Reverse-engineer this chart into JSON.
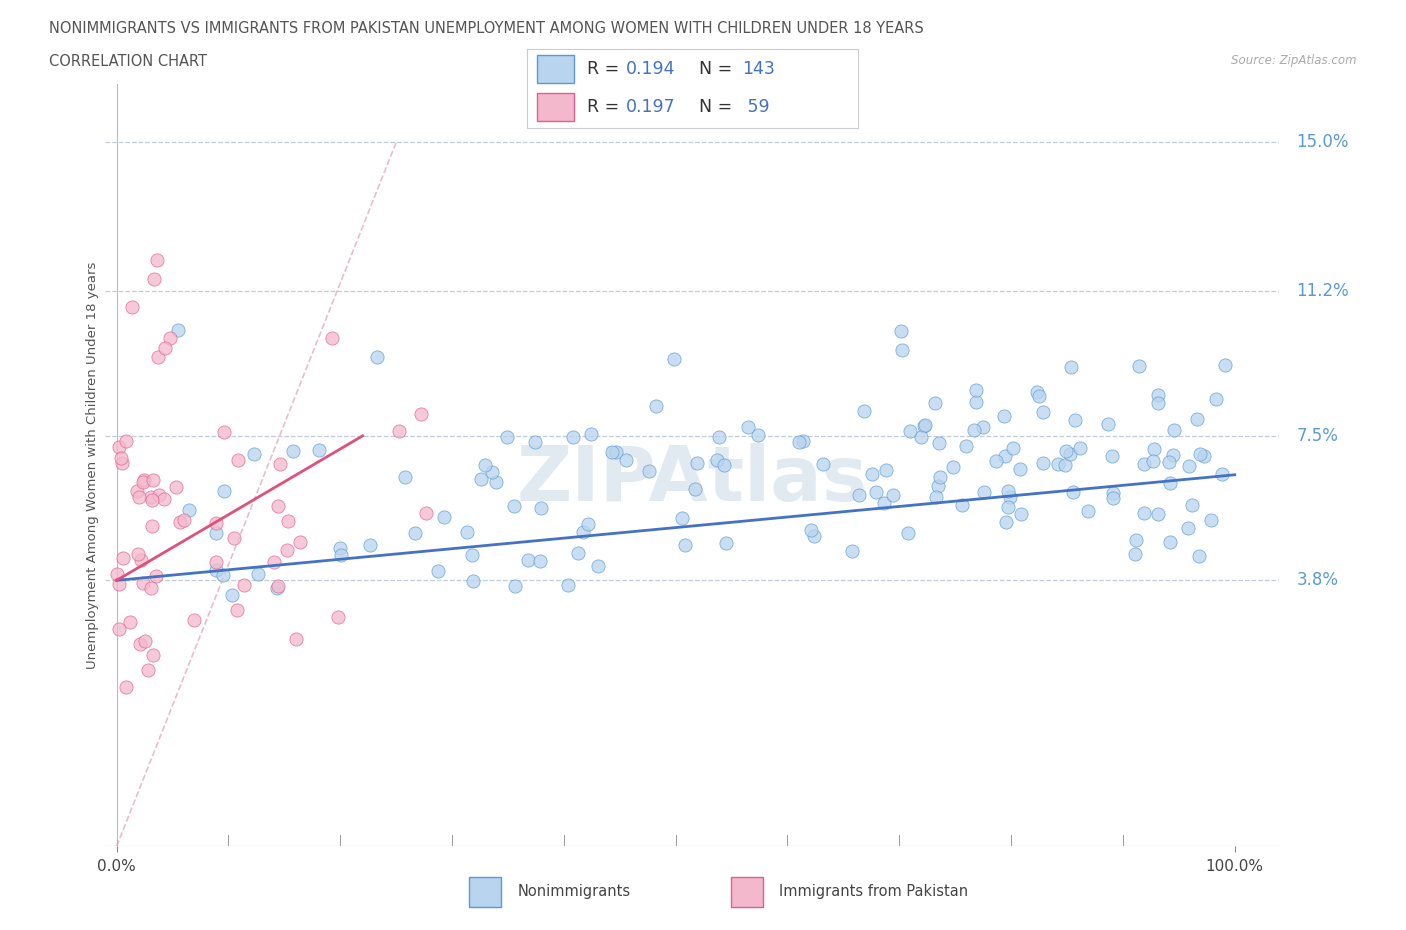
{
  "title_line1": "NONIMMIGRANTS VS IMMIGRANTS FROM PAKISTAN UNEMPLOYMENT AMONG WOMEN WITH CHILDREN UNDER 18 YEARS",
  "title_line2": "CORRELATION CHART",
  "source": "Source: ZipAtlas.com",
  "ylabel": "Unemployment Among Women with Children Under 18 years",
  "ytick_vals": [
    3.8,
    7.5,
    11.2,
    15.0
  ],
  "ytick_labels": [
    "3.8%",
    "7.5%",
    "11.2%",
    "15.0%"
  ],
  "xmin": 0,
  "xmax": 100,
  "ymin": -3.0,
  "ymax": 16.5,
  "blue_fill": "#b8d4ee",
  "blue_edge": "#5b9bd5",
  "pink_fill": "#f4b8cc",
  "pink_edge": "#e0608a",
  "trend_blue": "#4472c4",
  "trend_pink": "#e05078",
  "ref_line_color": "#e0a0b8",
  "grid_color": "#c0ccd8",
  "title_color": "#555555",
  "axis_label_color": "#5b9bd5",
  "watermark_color": "#d0dce8",
  "R_nonimm": "0.194",
  "N_nonimm": "143",
  "R_pakistan": "0.197",
  "N_pakistan": "59",
  "label_nonimm": "Nonimmigrants",
  "label_pakistan": "Immigrants from Pakistan",
  "source_color": "#aaaaaa",
  "legend_text_color": "#4472c4",
  "legend_label_color": "#333333"
}
